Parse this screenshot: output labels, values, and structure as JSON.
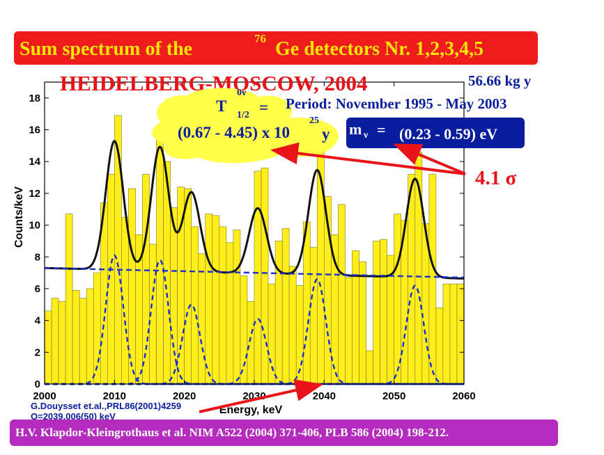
{
  "banner": {
    "title_pre": "Sum spectrum of the",
    "title_sup": "76",
    "title_post": "Ge detectors Nr. 1,2,3,4,5"
  },
  "experiment_label": "HEIDELBERG-MOSCOW, 2004",
  "exposure": "56.66 kg y",
  "period": "Period: November 1995 - May 2003",
  "half_life": {
    "symbol": "T",
    "sup": "0ν",
    "sub": "1/2",
    "equals": "=",
    "range": "(0.67 - 4.45) x 10",
    "exponent": "25",
    "unit": "y"
  },
  "neutrino_mass": {
    "symbol": "m",
    "sub": "ν",
    "equals": "=",
    "value": "(0.23 - 0.59) eV"
  },
  "significance": "4.1 σ",
  "reference_small": {
    "line1": "G.Douysset et.al.,PRL86(2001)4259",
    "line2": "Q=2039.006(50) keV"
  },
  "footer_citation": "H.V. Klapdor-Kleingrothaus et al. NIM A522 (2004) 371-406, PLB 586 (2004) 198-212.",
  "colors": {
    "banner_bg": "#ee1c1c",
    "banner_text": "#ffe400",
    "title_red": "#e8141a",
    "navy": "#0a1d9e",
    "bar_fill": "#ffee1a",
    "fit_line": "#111111",
    "peak_dashed": "#1a2ecc",
    "arrow": "#e8141a",
    "footer_bg": "#b52bbd",
    "cloud": "#ffff4a"
  },
  "chart_data": {
    "type": "bar",
    "title": "Sum spectrum of the 76 Ge detectors Nr. 1,2,3,4,5",
    "xlabel": "Energy, keV",
    "ylabel": "Counts/keV",
    "xlim": [
      2000,
      2060
    ],
    "ylim": [
      0,
      19
    ],
    "xticks": [
      2000,
      2010,
      2020,
      2030,
      2040,
      2050,
      2060
    ],
    "yticks": [
      0,
      2,
      4,
      6,
      8,
      10,
      12,
      14,
      16,
      18
    ],
    "bin_width_keV": 1,
    "bins_start_keV": [
      2000,
      2001,
      2002,
      2003,
      2004,
      2005,
      2006,
      2007,
      2008,
      2009,
      2010,
      2011,
      2012,
      2013,
      2014,
      2015,
      2016,
      2017,
      2018,
      2019,
      2020,
      2021,
      2022,
      2023,
      2024,
      2025,
      2026,
      2027,
      2028,
      2029,
      2030,
      2031,
      2032,
      2033,
      2034,
      2035,
      2036,
      2037,
      2038,
      2039,
      2040,
      2041,
      2042,
      2043,
      2044,
      2045,
      2046,
      2047,
      2048,
      2049,
      2050,
      2051,
      2052,
      2053,
      2054,
      2055,
      2056,
      2057,
      2058,
      2059
    ],
    "counts_per_keV": [
      4.6,
      5.4,
      5.2,
      10.7,
      5.9,
      5.4,
      6.0,
      7.0,
      11.4,
      13.2,
      16.9,
      10.5,
      12.3,
      9.4,
      13.2,
      8.8,
      16.3,
      14.0,
      11.1,
      12.4,
      12.3,
      9.9,
      8.2,
      10.7,
      10.6,
      9.9,
      8.9,
      9.7,
      6.8,
      5.2,
      13.4,
      13.6,
      6.3,
      9.0,
      9.8,
      7.4,
      6.2,
      10.2,
      8.6,
      14.7,
      11.8,
      9.4,
      11.3,
      6.7,
      8.4,
      7.7,
      2.1,
      9.0,
      9.1,
      8.1,
      10.7,
      10.3,
      13.2,
      14.6,
      10.1,
      13.2,
      4.8,
      6.3,
      6.3,
      6.3
    ],
    "series": [
      {
        "name": "total fit",
        "style": "solid",
        "background_level": 7.3,
        "background_slope_per_keV": -0.011,
        "peaks": [
          {
            "center_keV": 2010.0,
            "height": 8.1
          },
          {
            "center_keV": 2016.5,
            "height": 7.8
          },
          {
            "center_keV": 2021.0,
            "height": 5.0
          },
          {
            "center_keV": 2030.5,
            "height": 4.1
          },
          {
            "center_keV": 2039.0,
            "height": 6.6
          },
          {
            "center_keV": 2053.0,
            "height": 6.2
          }
        ],
        "sigma_keV": 1.25
      },
      {
        "name": "background",
        "style": "dashed",
        "y_at_2000": 7.3,
        "y_at_2060": 6.7
      },
      {
        "name": "individual peaks",
        "style": "dashed",
        "baseline": 0
      }
    ]
  }
}
